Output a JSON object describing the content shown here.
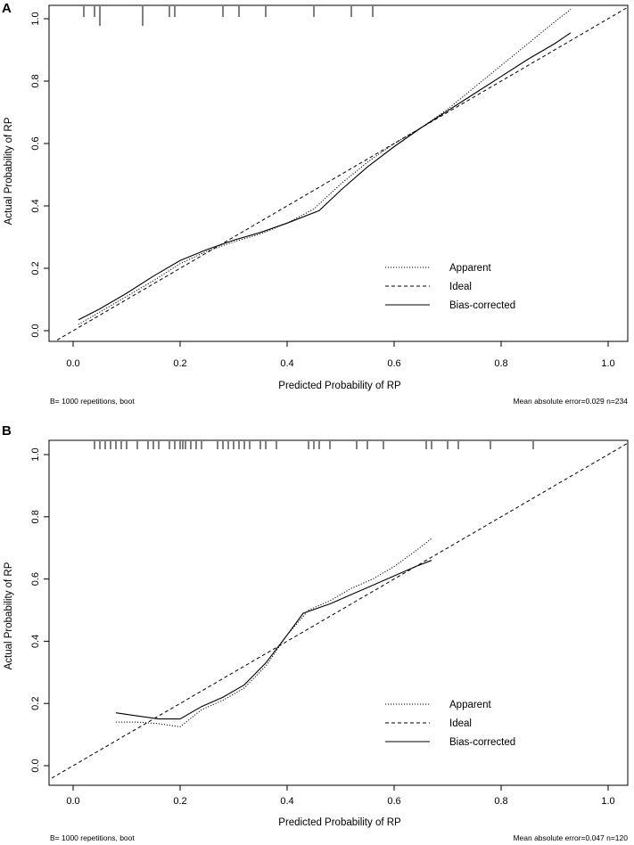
{
  "chart_data": [
    {
      "type": "line",
      "panel_label": "A",
      "xlabel": "Predicted Probability of RP",
      "ylabel": "Actual Probability of RP",
      "xlim": [
        0.0,
        1.0
      ],
      "ylim": [
        0.0,
        1.0
      ],
      "x_ticks": [
        "0.0",
        "0.2",
        "0.4",
        "0.6",
        "0.8",
        "1.0"
      ],
      "y_ticks": [
        "0.0",
        "0.2",
        "0.4",
        "0.6",
        "0.8",
        "1.0"
      ],
      "legend_position": "bottom-right",
      "series": [
        {
          "name": "Apparent",
          "style": "dotted",
          "x": [
            0.01,
            0.05,
            0.1,
            0.15,
            0.2,
            0.25,
            0.3,
            0.35,
            0.4,
            0.45,
            0.5,
            0.55,
            0.6,
            0.65,
            0.7,
            0.75,
            0.8,
            0.85,
            0.9,
            0.93
          ],
          "y": [
            0.02,
            0.06,
            0.11,
            0.16,
            0.215,
            0.255,
            0.285,
            0.31,
            0.345,
            0.39,
            0.47,
            0.54,
            0.6,
            0.65,
            0.71,
            0.78,
            0.85,
            0.92,
            0.99,
            1.03
          ]
        },
        {
          "name": "Ideal",
          "style": "dashed",
          "x": [
            -0.04,
            1.04
          ],
          "y": [
            -0.04,
            1.04
          ]
        },
        {
          "name": "Bias-corrected",
          "style": "solid",
          "x": [
            0.01,
            0.05,
            0.1,
            0.15,
            0.2,
            0.25,
            0.3,
            0.35,
            0.4,
            0.46,
            0.5,
            0.55,
            0.6,
            0.65,
            0.7,
            0.75,
            0.8,
            0.85,
            0.9,
            0.93
          ],
          "y": [
            0.035,
            0.07,
            0.12,
            0.175,
            0.225,
            0.26,
            0.29,
            0.315,
            0.345,
            0.385,
            0.45,
            0.525,
            0.59,
            0.65,
            0.705,
            0.76,
            0.815,
            0.87,
            0.92,
            0.955
          ]
        }
      ],
      "rug": [
        0.02,
        0.04,
        0.05,
        0.13,
        0.18,
        0.19,
        0.28,
        0.31,
        0.36,
        0.45,
        0.52,
        0.56
      ],
      "rug_tall": [
        0.05,
        0.13
      ],
      "footer_left": "B= 1000 repetitions, boot",
      "footer_right": "Mean absolute error=0.029 n=234"
    },
    {
      "type": "line",
      "panel_label": "B",
      "xlabel": "Predicted Probability of RP",
      "ylabel": "Actual Probability of RP",
      "xlim": [
        0.0,
        1.0
      ],
      "ylim": [
        0.0,
        1.0
      ],
      "x_ticks": [
        "0.0",
        "0.2",
        "0.4",
        "0.6",
        "0.8",
        "1.0"
      ],
      "y_ticks": [
        "0.0",
        "0.2",
        "0.4",
        "0.6",
        "0.8",
        "1.0"
      ],
      "legend_position": "bottom-right",
      "series": [
        {
          "name": "Apparent",
          "style": "dotted",
          "x": [
            0.08,
            0.12,
            0.16,
            0.2,
            0.24,
            0.28,
            0.32,
            0.36,
            0.4,
            0.44,
            0.48,
            0.52,
            0.56,
            0.6,
            0.64,
            0.67
          ],
          "y": [
            0.14,
            0.14,
            0.135,
            0.125,
            0.18,
            0.21,
            0.25,
            0.32,
            0.42,
            0.5,
            0.53,
            0.57,
            0.6,
            0.64,
            0.69,
            0.73
          ]
        },
        {
          "name": "Ideal",
          "style": "dashed",
          "x": [
            -0.04,
            1.04
          ],
          "y": [
            -0.04,
            1.04
          ]
        },
        {
          "name": "Bias-corrected",
          "style": "solid",
          "x": [
            0.08,
            0.12,
            0.16,
            0.2,
            0.24,
            0.28,
            0.32,
            0.36,
            0.4,
            0.43,
            0.48,
            0.52,
            0.56,
            0.6,
            0.64,
            0.67
          ],
          "y": [
            0.17,
            0.16,
            0.15,
            0.15,
            0.19,
            0.22,
            0.26,
            0.33,
            0.42,
            0.49,
            0.52,
            0.55,
            0.58,
            0.61,
            0.64,
            0.66
          ]
        }
      ],
      "rug": [
        0.04,
        0.05,
        0.06,
        0.07,
        0.08,
        0.09,
        0.1,
        0.12,
        0.14,
        0.15,
        0.16,
        0.18,
        0.19,
        0.2,
        0.205,
        0.21,
        0.22,
        0.23,
        0.24,
        0.27,
        0.28,
        0.29,
        0.3,
        0.31,
        0.32,
        0.33,
        0.35,
        0.36,
        0.38,
        0.44,
        0.45,
        0.46,
        0.48,
        0.53,
        0.55,
        0.58,
        0.66,
        0.67,
        0.7,
        0.72,
        0.78,
        0.86
      ],
      "rug_tall": [],
      "footer_left": "B= 1000 repetitions, boot",
      "footer_right": "Mean absolute error=0.047 n=120"
    }
  ]
}
